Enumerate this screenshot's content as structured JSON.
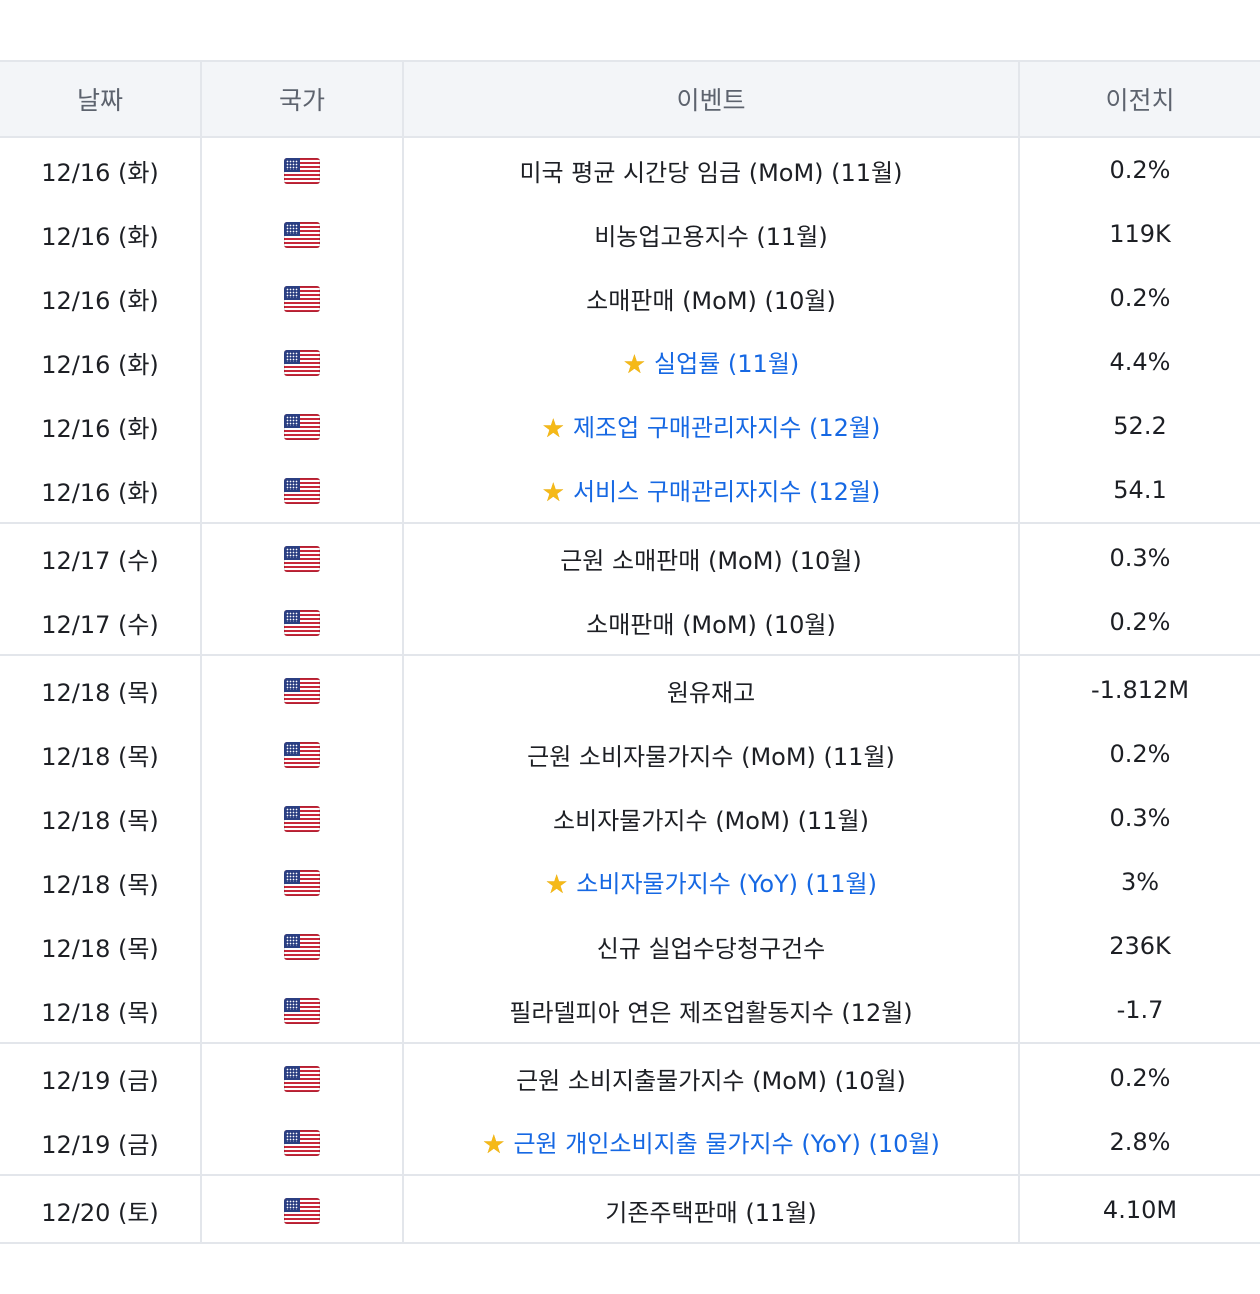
{
  "headers": {
    "date": "날짜",
    "country": "국가",
    "event": "이벤트",
    "previous": "이전치"
  },
  "rows": [
    {
      "date": "12/16 (화)",
      "country": "US",
      "event": "미국 평균 시간당 임금 (MoM) (11월)",
      "previous": "0.2%",
      "important": false
    },
    {
      "date": "12/16 (화)",
      "country": "US",
      "event": "비농업고용지수 (11월)",
      "previous": "119K",
      "important": false
    },
    {
      "date": "12/16 (화)",
      "country": "US",
      "event": "소매판매 (MoM) (10월)",
      "previous": "0.2%",
      "important": false
    },
    {
      "date": "12/16 (화)",
      "country": "US",
      "event": "실업률 (11월)",
      "previous": "4.4%",
      "important": true
    },
    {
      "date": "12/16 (화)",
      "country": "US",
      "event": "제조업 구매관리자지수 (12월)",
      "previous": "52.2",
      "important": true
    },
    {
      "date": "12/16 (화)",
      "country": "US",
      "event": "서비스 구매관리자지수 (12월)",
      "previous": "54.1",
      "important": true
    },
    {
      "date": "12/17 (수)",
      "country": "US",
      "event": "근원 소매판매 (MoM) (10월)",
      "previous": "0.3%",
      "important": false
    },
    {
      "date": "12/17 (수)",
      "country": "US",
      "event": "소매판매 (MoM) (10월)",
      "previous": "0.2%",
      "important": false
    },
    {
      "date": "12/18 (목)",
      "country": "US",
      "event": "원유재고",
      "previous": "-1.812M",
      "important": false
    },
    {
      "date": "12/18 (목)",
      "country": "US",
      "event": "근원 소비자물가지수 (MoM) (11월)",
      "previous": "0.2%",
      "important": false
    },
    {
      "date": "12/18 (목)",
      "country": "US",
      "event": "소비자물가지수 (MoM) (11월)",
      "previous": "0.3%",
      "important": false
    },
    {
      "date": "12/18 (목)",
      "country": "US",
      "event": "소비자물가지수 (YoY) (11월)",
      "previous": "3%",
      "important": true
    },
    {
      "date": "12/18 (목)",
      "country": "US",
      "event": "신규 실업수당청구건수",
      "previous": "236K",
      "important": false
    },
    {
      "date": "12/18 (목)",
      "country": "US",
      "event": "필라델피아 연은 제조업활동지수 (12월)",
      "previous": "-1.7",
      "important": false
    },
    {
      "date": "12/19 (금)",
      "country": "US",
      "event": "근원 소비지출물가지수 (MoM) (10월)",
      "previous": "0.2%",
      "important": false
    },
    {
      "date": "12/19 (금)",
      "country": "US",
      "event": "근원 개인소비지출 물가지수 (YoY) (10월)",
      "previous": "2.8%",
      "important": true
    },
    {
      "date": "12/20 (토)",
      "country": "US",
      "event": "기존주택판매 (11월)",
      "previous": "4.10M",
      "important": false
    }
  ],
  "icons": {
    "flag": "us-flag-icon",
    "important": "star-icon"
  },
  "colors": {
    "link": "#1668e3",
    "star": "#f5b918",
    "header_bg": "#f3f5f8",
    "border": "#e3e6eb"
  }
}
